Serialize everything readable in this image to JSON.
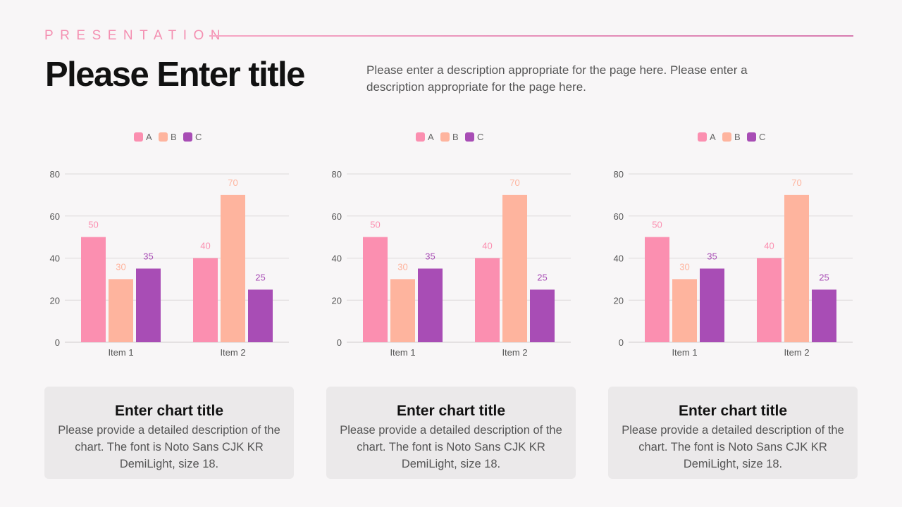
{
  "header": {
    "kicker": "PRESENTATION",
    "title": "Please Enter title",
    "description": "Please enter a description appropriate for the page here. Please enter a description appropriate for the page here."
  },
  "colors": {
    "A": "#fb8fb0",
    "B": "#feb49e",
    "C": "#a84db5",
    "accent": "#f48fb1"
  },
  "chart_data": [
    {
      "type": "bar",
      "categories": [
        "Item 1",
        "Item 2"
      ],
      "series": [
        {
          "name": "A",
          "values": [
            50,
            40
          ]
        },
        {
          "name": "B",
          "values": [
            30,
            70
          ]
        },
        {
          "name": "C",
          "values": [
            35,
            25
          ]
        }
      ],
      "ylim": [
        0,
        80
      ],
      "yticks": [
        0,
        20,
        40,
        60,
        80
      ],
      "grid": true,
      "legend": "top",
      "data_labels": true
    },
    {
      "type": "bar",
      "categories": [
        "Item 1",
        "Item 2"
      ],
      "series": [
        {
          "name": "A",
          "values": [
            50,
            40
          ]
        },
        {
          "name": "B",
          "values": [
            30,
            70
          ]
        },
        {
          "name": "C",
          "values": [
            35,
            25
          ]
        }
      ],
      "ylim": [
        0,
        80
      ],
      "yticks": [
        0,
        20,
        40,
        60,
        80
      ],
      "grid": true,
      "legend": "top",
      "data_labels": true
    },
    {
      "type": "bar",
      "categories": [
        "Item 1",
        "Item 2"
      ],
      "series": [
        {
          "name": "A",
          "values": [
            50,
            40
          ]
        },
        {
          "name": "B",
          "values": [
            30,
            70
          ]
        },
        {
          "name": "C",
          "values": [
            35,
            25
          ]
        }
      ],
      "ylim": [
        0,
        80
      ],
      "yticks": [
        0,
        20,
        40,
        60,
        80
      ],
      "grid": true,
      "legend": "top",
      "data_labels": true
    }
  ],
  "cards": [
    {
      "title": "Enter chart title",
      "description": "Please provide a detailed description of the chart. The font is Noto Sans CJK KR DemiLight, size 18."
    },
    {
      "title": "Enter chart title",
      "description": "Please provide a detailed description of the chart. The font is Noto Sans CJK KR DemiLight, size 18."
    },
    {
      "title": "Enter chart title",
      "description": "Please provide a detailed description of the chart. The font is Noto Sans CJK KR DemiLight, size 18."
    }
  ]
}
